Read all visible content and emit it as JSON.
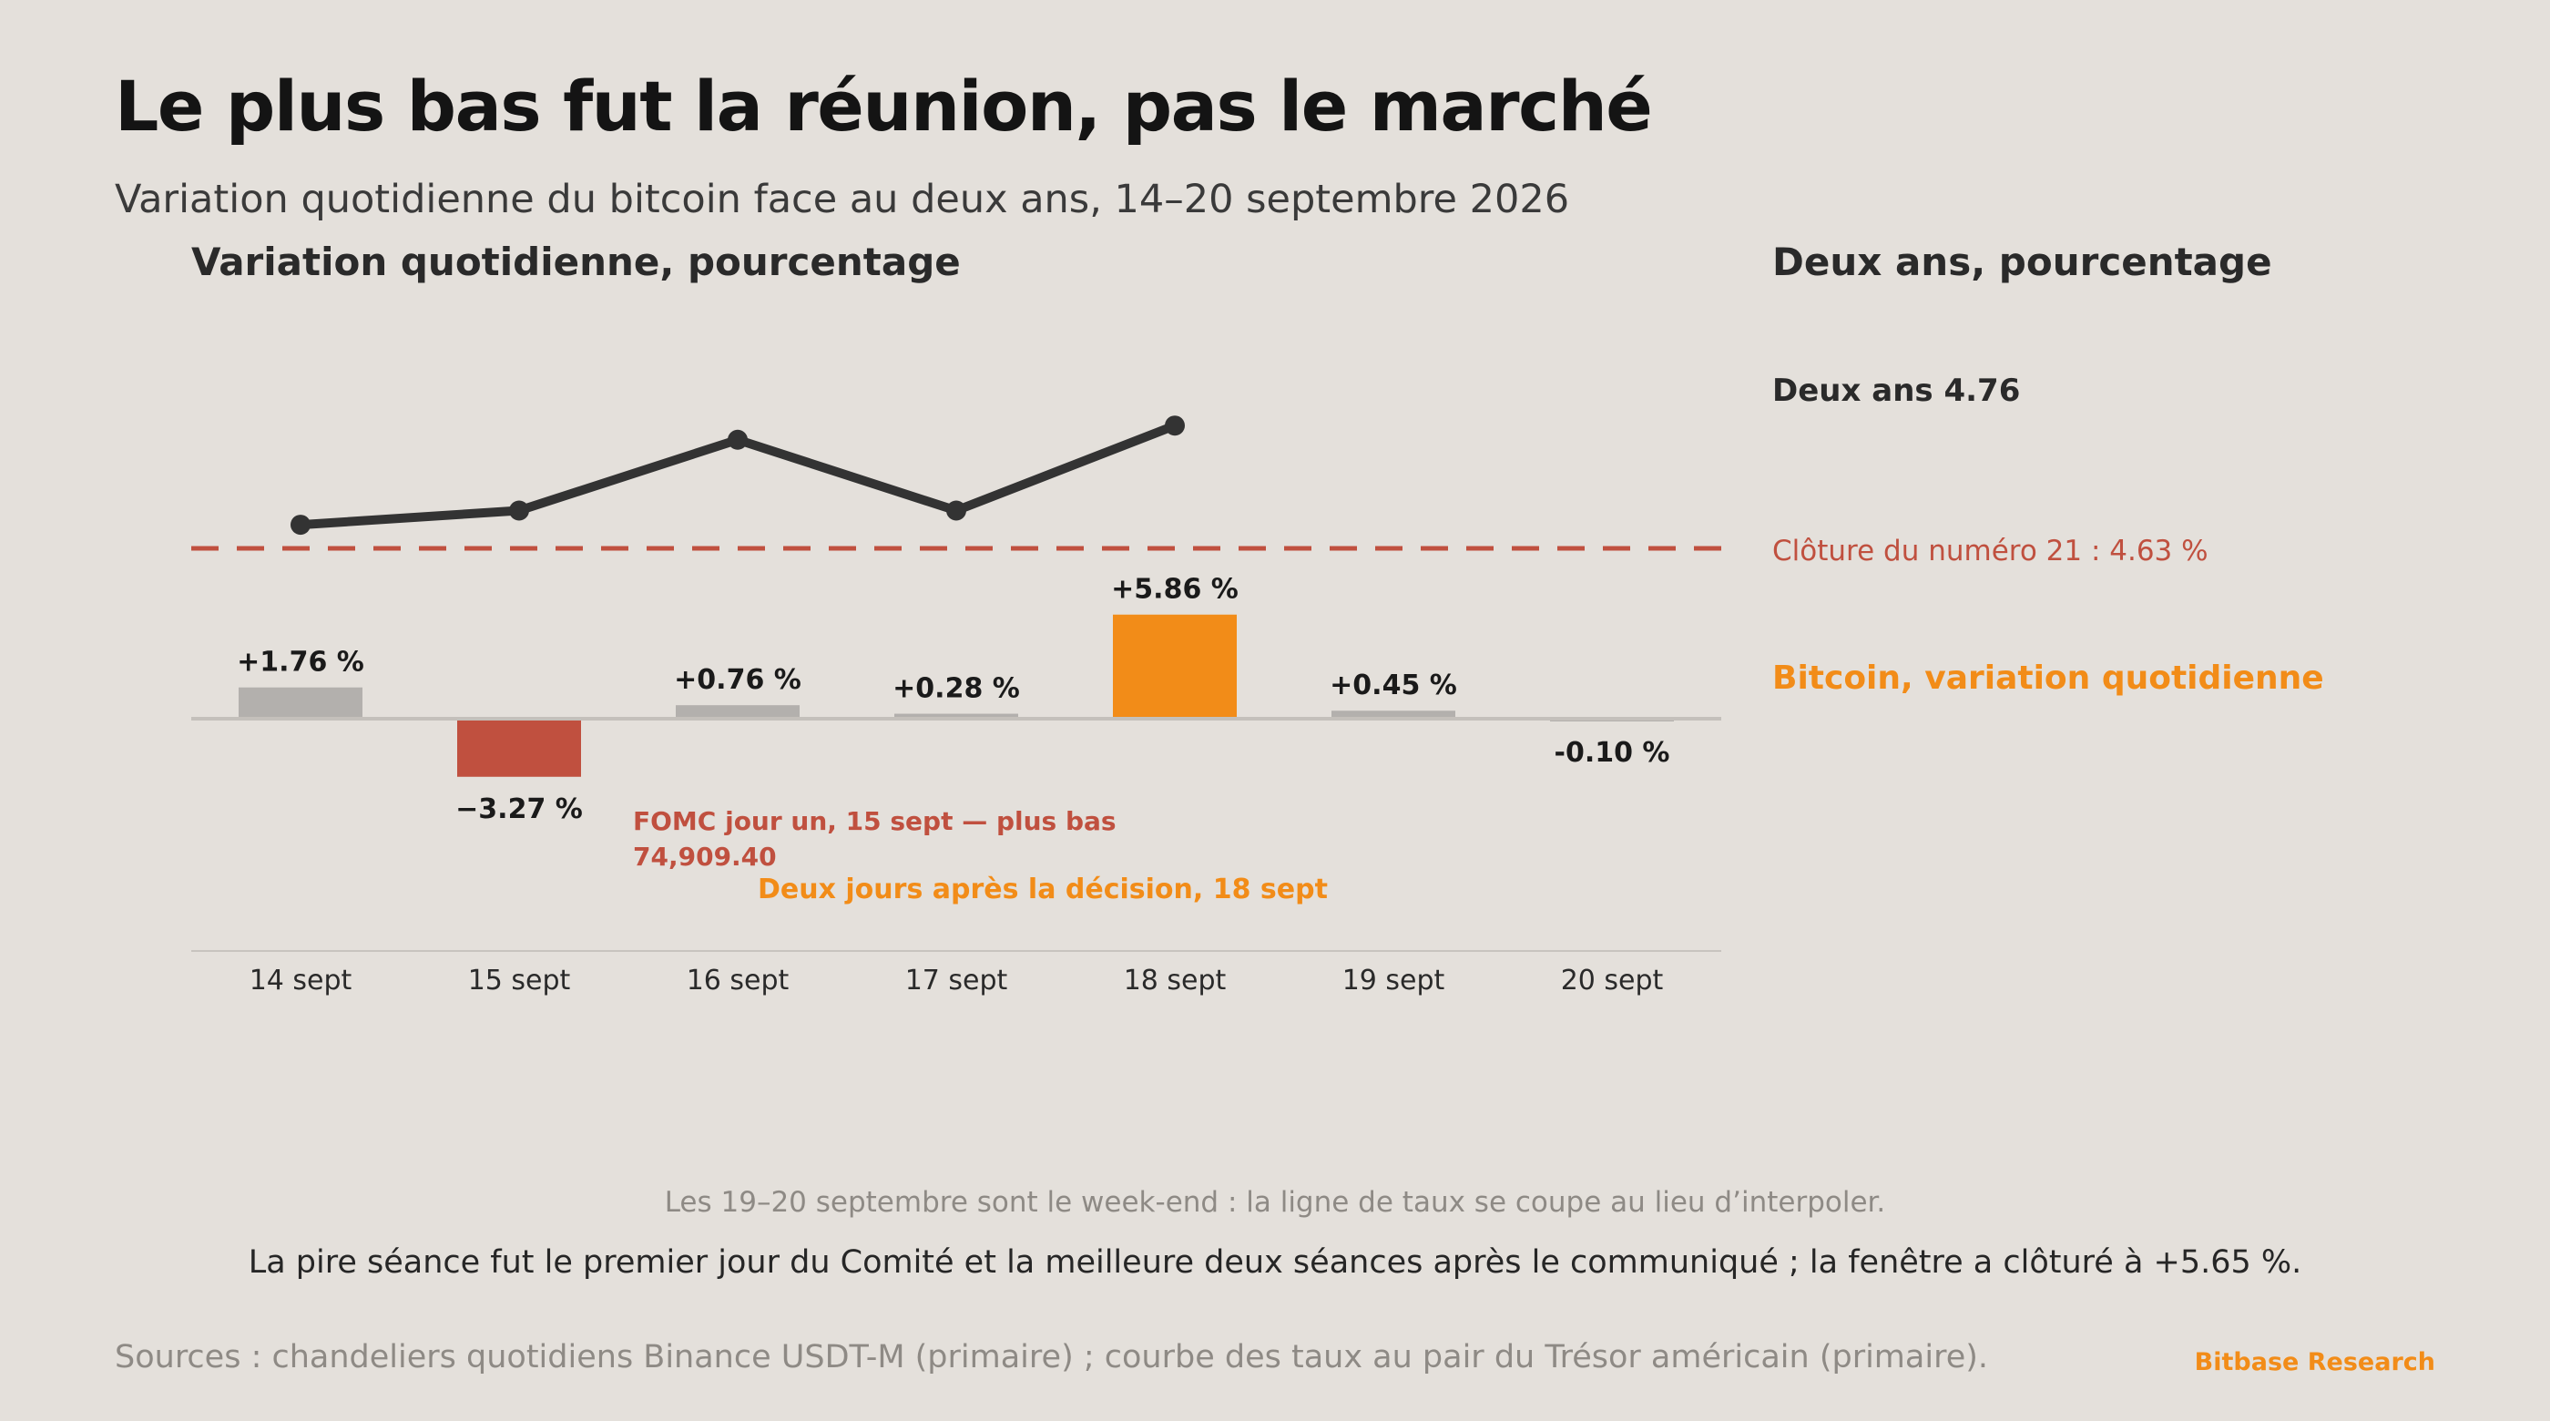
{
  "title": "Le plus bas fut la réunion, pas le marché",
  "subtitle": "Variation quotidienne du bitcoin face au deux ans, 14–20 septembre 2026",
  "notes": {
    "weekend": "Les 19–20 septembre sont le week-end : la ligne de taux se coupe au lieu d’interpoler.",
    "summary": "La pire séance fut le premier jour du Comité et la meilleure deux séances après le communiqué ; la fenêtre a clôturé à +5.65 %."
  },
  "sources": "Sources : chandeliers quotidiens Binance USDT-M (primaire) ; courbe des taux au pair du Trésor américain (primaire).",
  "brand": "Bitbase Research",
  "colors": {
    "background": "#e4e0db",
    "bar_neutral": "#b3b0ad",
    "bar_negative": "#c0503f",
    "bar_highlight": "#f28c18",
    "line": "#333333",
    "reference": "#c0503f",
    "annotation_fomc": "#c0503f",
    "annotation_decision": "#f28c18"
  },
  "chart_data": {
    "type": "bar",
    "categories": [
      "14 sept",
      "15 sept",
      "16 sept",
      "17 sept",
      "18 sept",
      "19 sept",
      "20 sept"
    ],
    "left_axis_title": "Variation quotidienne, pourcentage",
    "right_axis_title": "Deux ans, pourcentage",
    "series": [
      {
        "name": "Bitcoin, variation quotidienne",
        "kind": "bar",
        "values": [
          1.76,
          -3.27,
          0.76,
          0.28,
          5.86,
          0.45,
          -0.1
        ],
        "labels": [
          "+1.76 %",
          "−3.27 %",
          "+0.76 %",
          "+0.28 %",
          "+5.86 %",
          "+0.45 %",
          "-0.10 %"
        ],
        "highlight": {
          "15 sept": "negative",
          "18 sept": "highlight"
        }
      },
      {
        "name": "Deux ans",
        "kind": "line",
        "values": [
          4.655,
          4.67,
          4.745,
          4.67,
          4.76,
          null,
          null
        ],
        "end_label": "Deux ans 4.76"
      }
    ],
    "reference_line": {
      "value": 4.63,
      "label": "Clôture du numéro 21 : 4.63 %",
      "style": "dashed"
    },
    "annotations": [
      {
        "text": "FOMC jour un, 15 sept — plus bas",
        "anchor": "15 sept",
        "color": "fomc"
      },
      {
        "text": "74,909.40",
        "anchor": "15 sept",
        "color": "fomc"
      },
      {
        "text": "Deux jours après la décision, 18 sept",
        "anchor": "18 sept",
        "color": "decision"
      }
    ],
    "grid": false,
    "legend": "right"
  }
}
